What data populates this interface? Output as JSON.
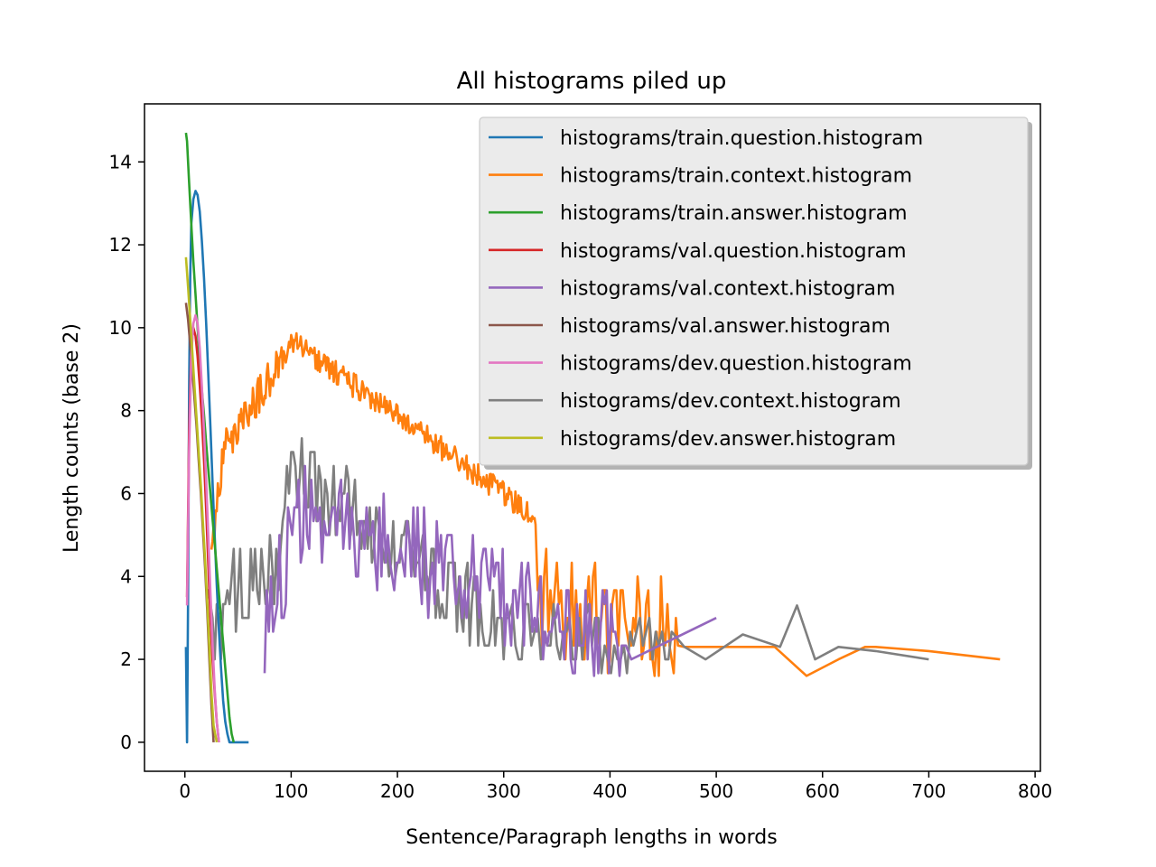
{
  "chart_data": {
    "type": "line",
    "title": "All histograms piled up",
    "xlabel": "Sentence/Paragraph lengths in words",
    "ylabel": "Length counts (base 2)",
    "xlim": [
      -38,
      805
    ],
    "ylim": [
      -0.7,
      15.4
    ],
    "xticks": [
      0,
      100,
      200,
      300,
      400,
      500,
      600,
      700,
      800
    ],
    "yticks": [
      0,
      2,
      4,
      6,
      8,
      10,
      12,
      14
    ],
    "grid": false,
    "legend_position": "top-right",
    "series": [
      {
        "name": "histograms/train.question.histogram",
        "color": "#1f77b4",
        "shape": "train_question",
        "points": [
          [
            1,
            2.3
          ],
          [
            2,
            0
          ],
          [
            3,
            3.3
          ],
          [
            4,
            8.5
          ],
          [
            5,
            11.2
          ],
          [
            6,
            12.5
          ],
          [
            8,
            13.1
          ],
          [
            10,
            13.3
          ],
          [
            12,
            13.2
          ],
          [
            14,
            12.8
          ],
          [
            16,
            12.1
          ],
          [
            18,
            11.2
          ],
          [
            20,
            10.1
          ],
          [
            22,
            8.9
          ],
          [
            24,
            7.6
          ],
          [
            26,
            6.3
          ],
          [
            28,
            5.0
          ],
          [
            30,
            3.8
          ],
          [
            32,
            2.7
          ],
          [
            34,
            1.8
          ],
          [
            36,
            1.0
          ],
          [
            38,
            0.5
          ],
          [
            40,
            0.2
          ],
          [
            42,
            0
          ],
          [
            45,
            0
          ],
          [
            50,
            0
          ],
          [
            55,
            0
          ],
          [
            60,
            0
          ]
        ]
      },
      {
        "name": "histograms/train.context.histogram",
        "color": "#ff7f0e",
        "shape": "train_context",
        "points": [
          [
            700,
            2.2
          ],
          [
            767,
            2.0
          ]
        ]
      },
      {
        "name": "histograms/train.answer.histogram",
        "color": "#2ca02c",
        "shape": "train_answer",
        "points": [
          [
            1,
            14.7
          ],
          [
            2,
            14.5
          ],
          [
            4,
            13.5
          ],
          [
            6,
            12.5
          ],
          [
            8,
            11.6
          ],
          [
            10,
            10.8
          ],
          [
            12,
            10.0
          ],
          [
            14,
            9.2
          ],
          [
            16,
            8.5
          ],
          [
            18,
            7.9
          ],
          [
            20,
            7.2
          ],
          [
            22,
            6.6
          ],
          [
            24,
            6.0
          ],
          [
            26,
            5.4
          ],
          [
            28,
            4.8
          ],
          [
            30,
            4.2
          ],
          [
            32,
            3.6
          ],
          [
            34,
            3.0
          ],
          [
            36,
            2.4
          ],
          [
            38,
            1.8
          ],
          [
            40,
            1.2
          ],
          [
            42,
            0.6
          ],
          [
            44,
            0.2
          ],
          [
            46,
            0
          ]
        ]
      },
      {
        "name": "histograms/val.question.histogram",
        "color": "#d62728",
        "shape": "val_question",
        "points": [
          [
            2,
            3.5
          ],
          [
            4,
            7.5
          ],
          [
            6,
            9.5
          ],
          [
            8,
            10.0
          ],
          [
            10,
            9.8
          ],
          [
            12,
            9.3
          ],
          [
            14,
            8.6
          ],
          [
            16,
            7.8
          ],
          [
            18,
            6.8
          ],
          [
            20,
            5.6
          ],
          [
            22,
            4.3
          ],
          [
            24,
            3.0
          ],
          [
            26,
            2.0
          ],
          [
            28,
            1.2
          ],
          [
            30,
            0.5
          ],
          [
            32,
            0
          ]
        ]
      },
      {
        "name": "histograms/val.context.histogram",
        "color": "#9467bd",
        "shape": "val_context",
        "points": [
          [
            420,
            2.0
          ],
          [
            500,
            3.0
          ]
        ]
      },
      {
        "name": "histograms/val.answer.histogram",
        "color": "#8c564b",
        "shape": "val_answer",
        "points": [
          [
            1,
            10.6
          ],
          [
            3,
            10.2
          ],
          [
            5,
            9.6
          ],
          [
            7,
            9.0
          ],
          [
            9,
            8.3
          ],
          [
            11,
            7.6
          ],
          [
            13,
            6.8
          ],
          [
            15,
            6.0
          ],
          [
            17,
            5.1
          ],
          [
            19,
            4.2
          ],
          [
            21,
            3.2
          ],
          [
            23,
            2.0
          ],
          [
            25,
            0.9
          ],
          [
            27,
            0
          ]
        ]
      },
      {
        "name": "histograms/dev.question.histogram",
        "color": "#e377c2",
        "shape": "dev_question",
        "points": [
          [
            2,
            3.3
          ],
          [
            4,
            7.0
          ],
          [
            6,
            9.3
          ],
          [
            8,
            10.1
          ],
          [
            10,
            10.3
          ],
          [
            12,
            10.1
          ],
          [
            14,
            9.5
          ],
          [
            16,
            8.6
          ],
          [
            18,
            7.5
          ],
          [
            20,
            6.3
          ],
          [
            22,
            5.0
          ],
          [
            24,
            3.6
          ],
          [
            26,
            2.4
          ],
          [
            28,
            1.3
          ],
          [
            30,
            0.5
          ],
          [
            32,
            0
          ]
        ]
      },
      {
        "name": "histograms/dev.context.histogram",
        "color": "#7f7f7f",
        "shape": "dev_context",
        "points": [
          [
            470,
            2.3
          ],
          [
            490,
            2.0
          ],
          [
            525,
            2.6
          ],
          [
            560,
            2.3
          ],
          [
            576,
            3.3
          ],
          [
            593,
            2.0
          ],
          [
            615,
            2.3
          ],
          [
            650,
            2.2
          ],
          [
            700,
            2.0
          ]
        ]
      },
      {
        "name": "histograms/dev.answer.histogram",
        "color": "#bcbd22",
        "shape": "dev_answer",
        "points": [
          [
            1,
            11.7
          ],
          [
            3,
            11.0
          ],
          [
            5,
            10.2
          ],
          [
            7,
            9.4
          ],
          [
            9,
            8.6
          ],
          [
            11,
            7.8
          ],
          [
            13,
            7.0
          ],
          [
            15,
            6.2
          ],
          [
            17,
            5.3
          ],
          [
            19,
            4.4
          ],
          [
            21,
            3.4
          ],
          [
            23,
            2.3
          ],
          [
            25,
            1.2
          ],
          [
            27,
            0.4
          ],
          [
            30,
            0
          ]
        ]
      }
    ]
  }
}
